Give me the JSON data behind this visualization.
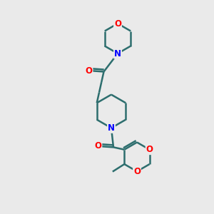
{
  "background_color": "#eaeaea",
  "bond_color": "#2d6e6e",
  "o_color": "#ff0000",
  "n_color": "#0000ff",
  "line_width": 1.8,
  "font_size_atom": 8.5,
  "fig_size": [
    3.0,
    3.0
  ],
  "dpi": 100,
  "xlim": [
    0,
    10
  ],
  "ylim": [
    0,
    10
  ]
}
